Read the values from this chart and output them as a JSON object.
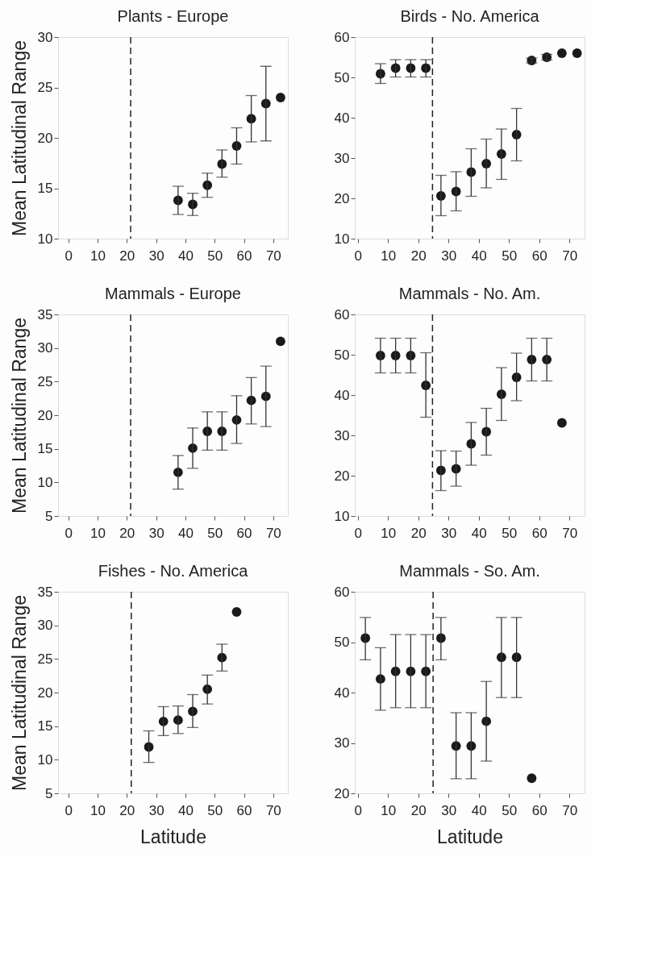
{
  "chart_data": [
    {
      "type": "scatter",
      "title": "Plants - Europe",
      "ylabel": "Mean Latitudinal Range",
      "marker": "circle",
      "color": "#1a1a1a",
      "grid": false,
      "x": [
        37.5,
        42.5,
        47.5,
        52.5,
        57.5,
        62.5,
        67.5,
        72.5
      ],
      "values": [
        13.8,
        13.4,
        15.3,
        17.4,
        19.2,
        21.9,
        23.4,
        24.0
      ],
      "errors": [
        [
          12.4,
          15.2
        ],
        [
          12.3,
          14.5
        ],
        [
          14.1,
          16.5
        ],
        [
          16.1,
          18.8
        ],
        [
          17.4,
          21.0
        ],
        [
          19.6,
          24.2
        ],
        [
          19.7,
          27.1
        ],
        null
      ],
      "xlim": [
        -3.5,
        75
      ],
      "xticks": [
        0,
        10,
        20,
        30,
        40,
        50,
        60,
        70
      ],
      "ylim": [
        10,
        30
      ],
      "yticks": [
        10,
        15,
        20,
        25,
        30
      ],
      "ref_lines": [
        {
          "axis": "x",
          "value": 21.3,
          "line_style": "dashed"
        }
      ]
    },
    {
      "type": "scatter",
      "title": "Birds - No. America",
      "marker": "circle",
      "color": "#1a1a1a",
      "grid": false,
      "x": [
        7.5,
        12.5,
        17.5,
        22.5,
        27.5,
        32.5,
        37.5,
        42.5,
        47.5,
        52.5,
        57.5,
        62.5,
        67.5,
        72.5
      ],
      "values": [
        50.9,
        52.3,
        52.3,
        52.3,
        20.6,
        21.7,
        26.5,
        28.6,
        31.0,
        35.8,
        54.2,
        55.0,
        56.0,
        56.0
      ],
      "errors": [
        [
          48.5,
          53.4
        ],
        [
          50.1,
          54.4
        ],
        [
          50.1,
          54.4
        ],
        [
          50.1,
          54.4
        ],
        [
          15.7,
          25.7
        ],
        [
          16.9,
          26.6
        ],
        [
          20.5,
          32.3
        ],
        [
          22.6,
          34.7
        ],
        [
          24.7,
          37.2
        ],
        [
          29.3,
          42.3
        ],
        [
          53.6,
          54.8
        ],
        [
          54.3,
          55.7
        ],
        null,
        null
      ],
      "xlim": [
        -1,
        75
      ],
      "xticks": [
        0,
        10,
        20,
        30,
        40,
        50,
        60,
        70
      ],
      "ylim": [
        10,
        60
      ],
      "yticks": [
        10,
        20,
        30,
        40,
        50,
        60
      ],
      "ref_lines": [
        {
          "axis": "x",
          "value": 24.7,
          "line_style": "dashed"
        }
      ]
    },
    {
      "type": "scatter",
      "title": "Mammals - Europe",
      "ylabel": "Mean Latitudinal Range",
      "marker": "circle",
      "color": "#1a1a1a",
      "grid": false,
      "x": [
        37.5,
        42.5,
        47.5,
        52.5,
        57.5,
        62.5,
        67.5,
        72.5
      ],
      "values": [
        11.5,
        15.1,
        17.6,
        17.6,
        19.3,
        22.2,
        22.8,
        31.0
      ],
      "errors": [
        [
          9.0,
          14.0
        ],
        [
          12.1,
          18.1
        ],
        [
          14.8,
          20.5
        ],
        [
          14.8,
          20.5
        ],
        [
          15.8,
          22.9
        ],
        [
          18.7,
          25.6
        ],
        [
          18.3,
          27.3
        ],
        null
      ],
      "xlim": [
        -3.5,
        75
      ],
      "xticks": [
        0,
        10,
        20,
        30,
        40,
        50,
        60,
        70
      ],
      "ylim": [
        5,
        35
      ],
      "yticks": [
        5,
        10,
        15,
        20,
        25,
        30,
        35
      ],
      "ref_lines": [
        {
          "axis": "x",
          "value": 21.3,
          "line_style": "dashed"
        }
      ]
    },
    {
      "type": "scatter",
      "title": "Mammals - No. Am.",
      "marker": "circle",
      "color": "#1a1a1a",
      "grid": false,
      "x": [
        7.5,
        12.5,
        17.5,
        22.5,
        27.5,
        32.5,
        37.5,
        42.5,
        47.5,
        52.5,
        57.5,
        62.5,
        67.5
      ],
      "values": [
        49.8,
        49.8,
        49.8,
        42.4,
        21.3,
        21.7,
        27.9,
        30.9,
        40.2,
        44.4,
        48.8,
        48.8,
        33.1
      ],
      "errors": [
        [
          45.5,
          54.1
        ],
        [
          45.5,
          54.1
        ],
        [
          45.5,
          54.1
        ],
        [
          34.5,
          50.5
        ],
        [
          16.3,
          26.2
        ],
        [
          17.4,
          26.1
        ],
        [
          22.6,
          33.2
        ],
        [
          25.1,
          36.7
        ],
        [
          33.7,
          46.8
        ],
        [
          38.6,
          50.4
        ],
        [
          43.5,
          54.1
        ],
        [
          43.5,
          54.1
        ],
        null
      ],
      "xlim": [
        -1,
        75
      ],
      "xticks": [
        0,
        10,
        20,
        30,
        40,
        50,
        60,
        70
      ],
      "ylim": [
        10,
        60
      ],
      "yticks": [
        10,
        20,
        30,
        40,
        50,
        60
      ],
      "ref_lines": [
        {
          "axis": "x",
          "value": 24.7,
          "line_style": "dashed"
        }
      ]
    },
    {
      "type": "scatter",
      "title": "Fishes - No. America",
      "ylabel": "Mean Latitudinal Range",
      "xlabel": "Latitude",
      "marker": "circle",
      "color": "#1a1a1a",
      "grid": false,
      "x": [
        27.5,
        32.5,
        37.5,
        42.5,
        47.5,
        52.5,
        57.5
      ],
      "values": [
        11.9,
        15.7,
        15.9,
        17.2,
        20.5,
        25.2,
        32.0
      ],
      "errors": [
        [
          9.6,
          14.3
        ],
        [
          13.6,
          17.9
        ],
        [
          13.9,
          18.0
        ],
        [
          14.8,
          19.7
        ],
        [
          18.3,
          22.6
        ],
        [
          23.2,
          27.2
        ],
        null
      ],
      "xlim": [
        -3.5,
        75
      ],
      "xticks": [
        0,
        10,
        20,
        30,
        40,
        50,
        60,
        70
      ],
      "ylim": [
        5,
        35
      ],
      "yticks": [
        5,
        10,
        15,
        20,
        25,
        30,
        35
      ],
      "ref_lines": [
        {
          "axis": "x",
          "value": 21.5,
          "line_style": "dashed"
        }
      ]
    },
    {
      "type": "scatter",
      "title": "Mammals - So. Am.",
      "xlabel": "Latitude",
      "marker": "circle",
      "color": "#1a1a1a",
      "grid": false,
      "x": [
        2.5,
        7.5,
        12.5,
        17.5,
        22.5,
        27.5,
        32.5,
        37.5,
        42.5,
        47.5,
        52.5,
        57.5
      ],
      "values": [
        50.8,
        42.7,
        44.2,
        44.2,
        44.2,
        50.8,
        29.4,
        29.4,
        34.3,
        47.0,
        47.0,
        23.0
      ],
      "errors": [
        [
          46.5,
          54.9
        ],
        [
          36.5,
          48.9
        ],
        [
          37.0,
          51.5
        ],
        [
          37.0,
          51.5
        ],
        [
          37.0,
          51.5
        ],
        [
          46.5,
          54.9
        ],
        [
          22.9,
          36.0
        ],
        [
          22.9,
          36.0
        ],
        [
          26.4,
          42.2
        ],
        [
          39.0,
          54.9
        ],
        [
          39.0,
          54.9
        ],
        null
      ],
      "xlim": [
        -1,
        75
      ],
      "xticks": [
        0,
        10,
        20,
        30,
        40,
        50,
        60,
        70
      ],
      "ylim": [
        20,
        60
      ],
      "yticks": [
        20,
        30,
        40,
        50,
        60
      ],
      "ref_lines": [
        {
          "axis": "x",
          "value": 24.9,
          "line_style": "dashed"
        }
      ]
    }
  ]
}
